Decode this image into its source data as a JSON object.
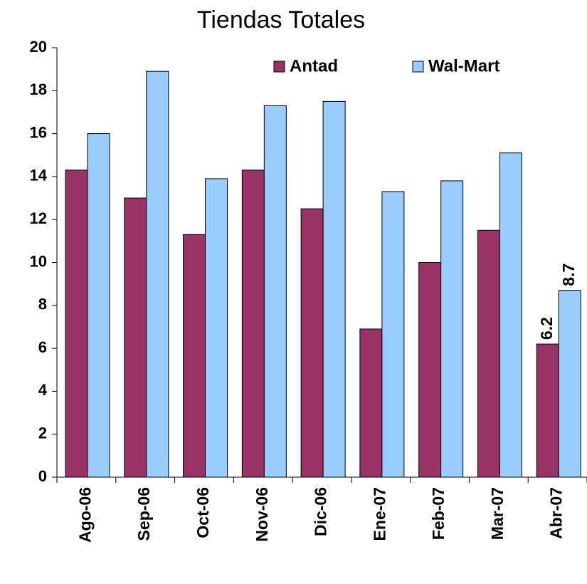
{
  "chart_data": {
    "type": "bar",
    "title": "Tiendas Totales",
    "categories": [
      "Ago-06",
      "Sep-06",
      "Oct-06",
      "Nov-06",
      "Dic-06",
      "Ene-07",
      "Feb-07",
      "Mar-07",
      "Abr-07"
    ],
    "series": [
      {
        "name": "Antad",
        "color": "#993366",
        "values": [
          14.3,
          13.0,
          11.3,
          14.3,
          12.5,
          6.9,
          10.0,
          11.5,
          6.2
        ],
        "value_labels": [
          null,
          null,
          null,
          null,
          null,
          null,
          null,
          null,
          "6.2"
        ]
      },
      {
        "name": "Wal-Mart",
        "color": "#99ccff",
        "values": [
          16.0,
          18.9,
          13.9,
          17.3,
          17.5,
          13.3,
          13.8,
          15.1,
          8.7
        ],
        "value_labels": [
          null,
          null,
          null,
          null,
          null,
          null,
          null,
          null,
          "8.7"
        ]
      }
    ],
    "ylim": [
      0,
      20
    ],
    "yticks": [
      0,
      2,
      4,
      6,
      8,
      10,
      12,
      14,
      16,
      18,
      20
    ],
    "grid": false
  }
}
